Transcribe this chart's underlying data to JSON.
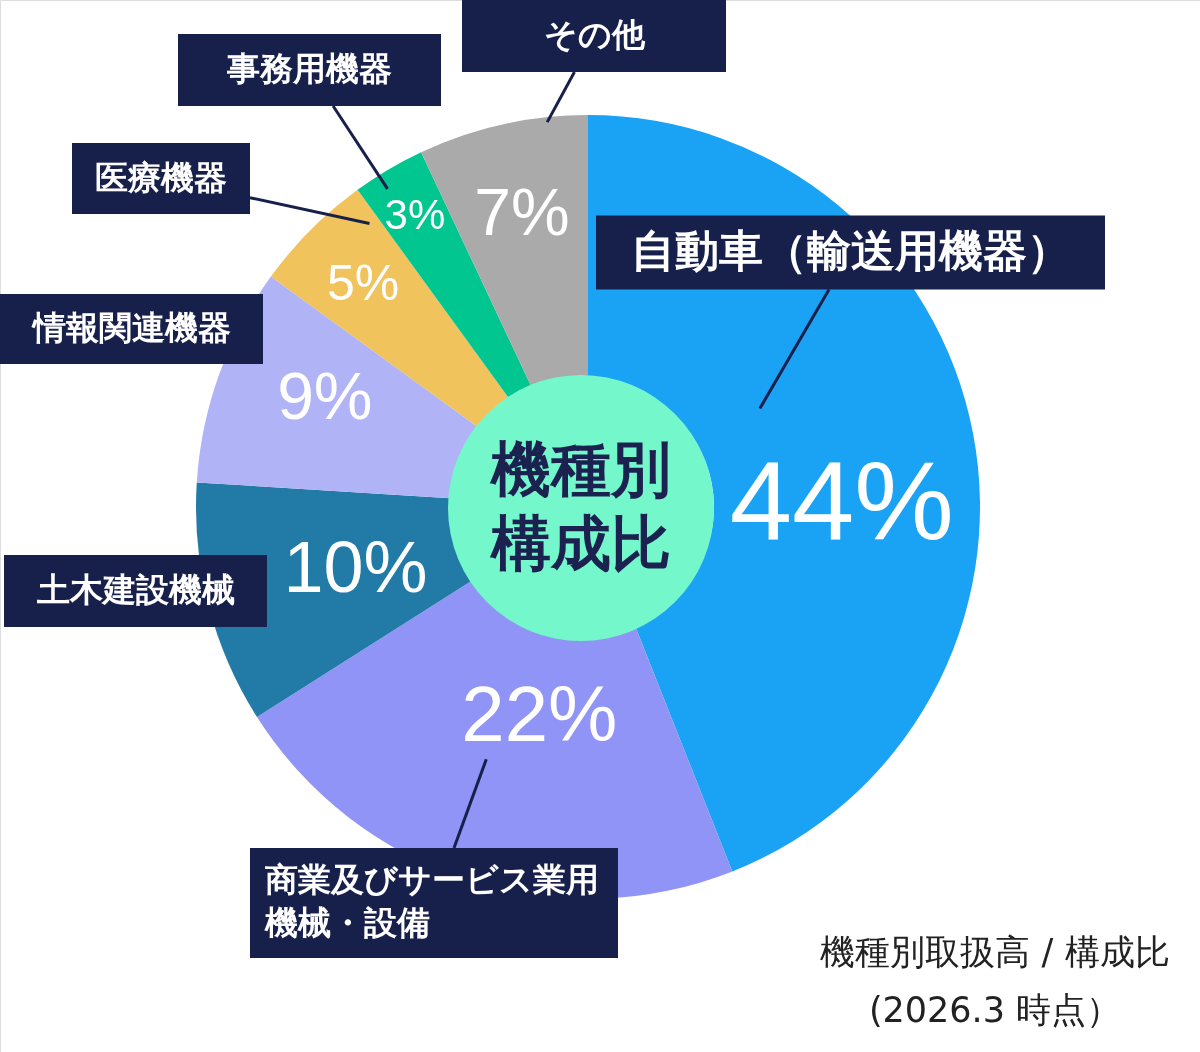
{
  "chart_data": {
    "type": "donut",
    "title": "機種別構成比",
    "categories": [
      "自動車（輸送用機器）",
      "商業及びサービス業用機械・設備",
      "土木建設機械",
      "情報関連機器",
      "医療機器",
      "事務用機器",
      "その他"
    ],
    "values": [
      44,
      22,
      10,
      9,
      5,
      3,
      7
    ],
    "colors": [
      "#1aa3f5",
      "#9094f6",
      "#217ba6",
      "#b0b4f6",
      "#f1c35c",
      "#01c68f",
      "#aaaaaa"
    ],
    "value_labels": [
      "44%",
      "22%",
      "10%",
      "9%",
      "5%",
      "3%",
      "7%"
    ],
    "annotations": [
      "機種別取扱高 / 構成比\n(2026.3 時点）"
    ]
  }
}
